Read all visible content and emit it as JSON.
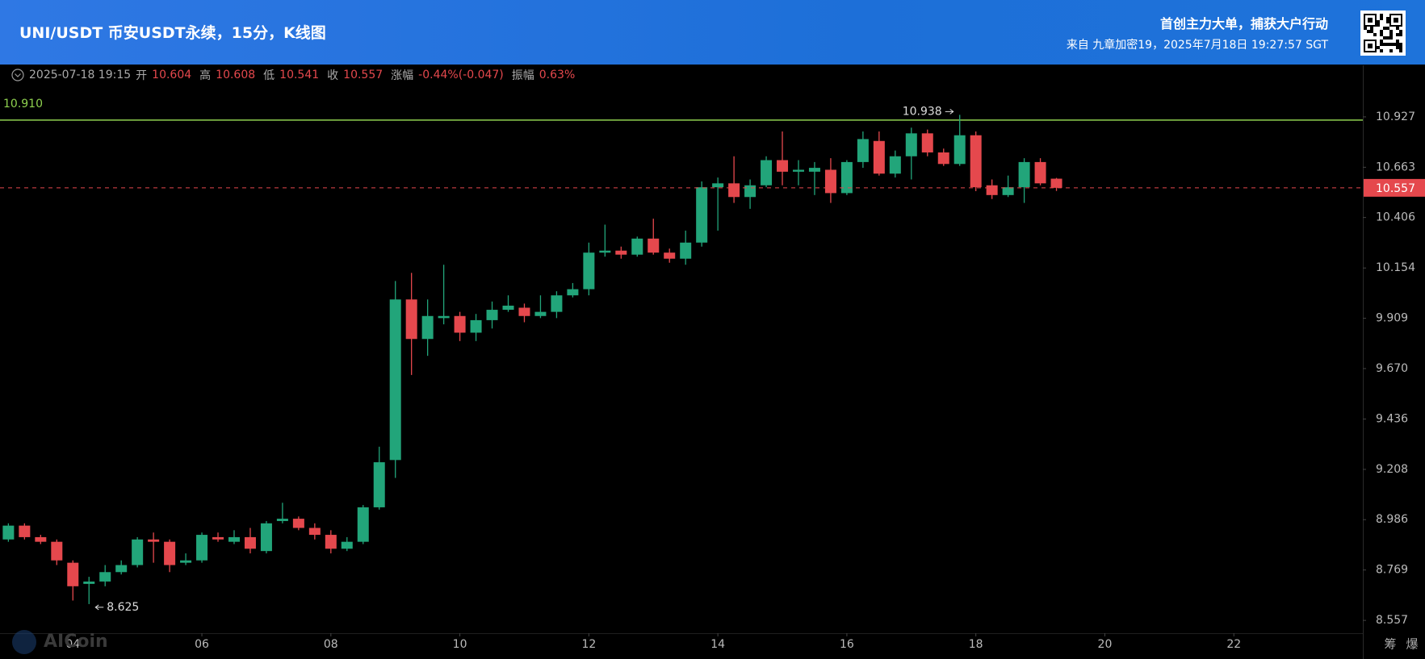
{
  "header": {
    "promo": "首创主力大单，捕获大户行动",
    "source": "来自 九章加密19，2025年7月18日 19:27:57 SGT"
  },
  "info": {
    "time": "2025-07-18 19:15",
    "open_label": "开",
    "high_label": "高",
    "low_label": "低",
    "close_label": "收",
    "change_label": "涨幅",
    "change": "-0.44%(-0.047)",
    "amplitude_label": "振幅",
    "amplitude": "0.63%"
  },
  "buttons": [
    "筹",
    "爆"
  ],
  "watermark": "AICoin",
  "chart_data": {
    "type": "candlestick",
    "title": "UNI/USDT 币安USDT永续，15分，K线图",
    "x": [
      3,
      3.25,
      3.5,
      3.75,
      4,
      4.25,
      4.5,
      4.75,
      5,
      5.25,
      5.5,
      5.75,
      6,
      6.25,
      6.5,
      6.75,
      7,
      7.25,
      7.5,
      7.75,
      8,
      8.25,
      8.5,
      8.75,
      9,
      9.25,
      9.5,
      9.75,
      10,
      10.25,
      10.5,
      10.75,
      11,
      11.25,
      11.5,
      11.75,
      12,
      12.25,
      12.5,
      12.75,
      13,
      13.25,
      13.5,
      13.75,
      14,
      14.25,
      14.5,
      14.75,
      15,
      15.25,
      15.5,
      15.75,
      16,
      16.25,
      16.5,
      16.75,
      17,
      17.25,
      17.5,
      17.75,
      18,
      18.25,
      18.5,
      18.75,
      19,
      19.25
    ],
    "open": [
      8.9,
      8.96,
      8.91,
      8.89,
      8.8,
      8.71,
      8.72,
      8.76,
      8.79,
      8.9,
      8.89,
      8.8,
      8.81,
      8.91,
      8.89,
      8.91,
      8.85,
      8.98,
      8.99,
      8.95,
      8.92,
      8.86,
      8.89,
      9.04,
      9.25,
      10.0,
      9.81,
      9.91,
      9.92,
      9.84,
      9.9,
      9.95,
      9.96,
      9.92,
      9.94,
      10.02,
      10.05,
      10.23,
      10.24,
      10.22,
      10.3,
      10.23,
      10.2,
      10.28,
      10.56,
      10.58,
      10.51,
      10.57,
      10.7,
      10.64,
      10.64,
      10.65,
      10.53,
      10.69,
      10.8,
      10.63,
      10.72,
      10.84,
      10.74,
      10.68,
      10.83,
      10.57,
      10.52,
      10.56,
      10.69,
      10.604
    ],
    "high": [
      8.97,
      8.97,
      8.92,
      8.9,
      8.81,
      8.74,
      8.79,
      8.81,
      8.91,
      8.93,
      8.9,
      8.84,
      8.93,
      8.93,
      8.94,
      8.95,
      8.98,
      9.06,
      9.0,
      8.97,
      8.94,
      8.91,
      9.05,
      9.31,
      10.09,
      10.13,
      10.0,
      10.17,
      9.94,
      9.93,
      9.99,
      10.02,
      9.98,
      10.02,
      10.04,
      10.08,
      10.28,
      10.37,
      10.26,
      10.31,
      10.4,
      10.25,
      10.34,
      10.59,
      10.61,
      10.72,
      10.6,
      10.72,
      10.85,
      10.7,
      10.69,
      10.71,
      10.7,
      10.85,
      10.85,
      10.75,
      10.87,
      10.86,
      10.76,
      10.938,
      10.85,
      10.6,
      10.62,
      10.71,
      10.71,
      10.608
    ],
    "low": [
      8.89,
      8.9,
      8.88,
      8.79,
      8.64,
      8.625,
      8.7,
      8.75,
      8.78,
      8.8,
      8.76,
      8.79,
      8.8,
      8.89,
      8.88,
      8.84,
      8.84,
      8.97,
      8.94,
      8.9,
      8.84,
      8.85,
      8.88,
      9.03,
      9.17,
      9.64,
      9.73,
      9.88,
      9.8,
      9.8,
      9.86,
      9.94,
      9.89,
      9.91,
      9.91,
      10.01,
      10.02,
      10.21,
      10.2,
      10.21,
      10.22,
      10.18,
      10.17,
      10.26,
      10.34,
      10.48,
      10.45,
      10.56,
      10.57,
      10.57,
      10.52,
      10.48,
      10.52,
      10.66,
      10.62,
      10.61,
      10.6,
      10.72,
      10.67,
      10.67,
      10.54,
      10.5,
      10.51,
      10.48,
      10.57,
      10.541
    ],
    "close": [
      8.96,
      8.91,
      8.89,
      8.81,
      8.7,
      8.72,
      8.76,
      8.79,
      8.9,
      8.89,
      8.79,
      8.81,
      8.92,
      8.9,
      8.91,
      8.86,
      8.97,
      8.99,
      8.95,
      8.92,
      8.86,
      8.89,
      9.04,
      9.24,
      10.0,
      9.81,
      9.92,
      9.92,
      9.84,
      9.9,
      9.95,
      9.97,
      9.92,
      9.94,
      10.02,
      10.05,
      10.23,
      10.24,
      10.22,
      10.3,
      10.23,
      10.2,
      10.28,
      10.56,
      10.58,
      10.51,
      10.57,
      10.7,
      10.64,
      10.65,
      10.66,
      10.53,
      10.69,
      10.81,
      10.63,
      10.72,
      10.84,
      10.74,
      10.68,
      10.83,
      10.56,
      10.52,
      10.56,
      10.69,
      10.58,
      10.557
    ],
    "up_color": "#22a57a",
    "down_color": "#e5484d",
    "xlim": [
      2.87,
      24.0
    ],
    "xticks": [
      {
        "value": 4,
        "label": "04"
      },
      {
        "value": 6,
        "label": "06"
      },
      {
        "value": 8,
        "label": "08"
      },
      10,
      12,
      14,
      16,
      18,
      20,
      22
    ],
    "ylim": [
      8.504,
      11.204
    ],
    "yticks": [
      8.557,
      8.769,
      8.986,
      9.208,
      9.436,
      {
        "value": 9.67,
        "label": "9.670"
      },
      9.909,
      10.154,
      10.406,
      10.663,
      10.927
    ],
    "log_scale": true,
    "grid": false,
    "hline": {
      "value": 10.91,
      "label": "10.910",
      "color": "#8fd14f"
    }
  }
}
